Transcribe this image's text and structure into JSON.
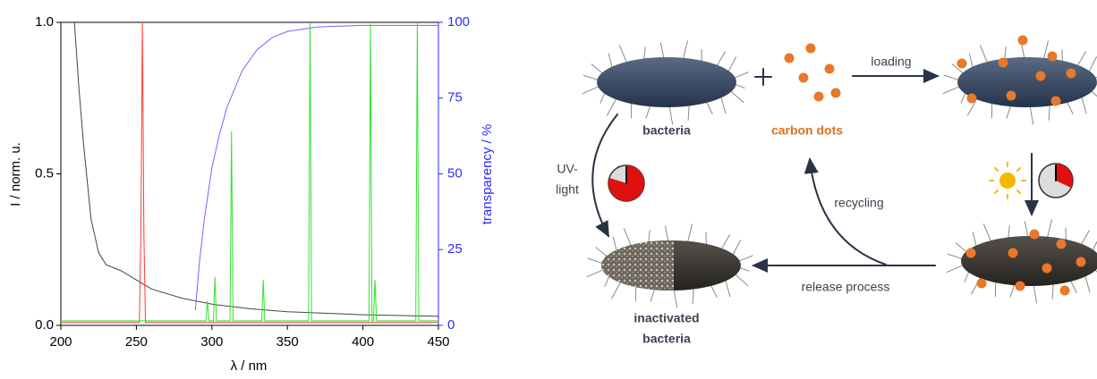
{
  "chart_data": {
    "type": "line",
    "xlabel": "λ / nm",
    "ylabel": "I / norm. u.",
    "y2label": "transparency / %",
    "xlim": [
      200,
      450
    ],
    "ylim": [
      0,
      1
    ],
    "y2lim": [
      0,
      100
    ],
    "xticks": [
      200,
      250,
      300,
      350,
      400,
      450
    ],
    "yticks": [
      {
        "value": 0,
        "label": "0.0"
      },
      {
        "value": 0.5,
        "label": "0.5"
      },
      {
        "value": 1,
        "label": "1.0"
      }
    ],
    "y2ticks": [
      0,
      25,
      50,
      75,
      100
    ],
    "y2color": "#2b2bff",
    "series": [
      {
        "color": "#444444",
        "x": [
          209,
          212,
          215,
          220,
          225,
          230,
          240,
          250,
          260,
          280,
          300,
          325,
          350,
          400,
          450
        ],
        "values": [
          1.0,
          0.78,
          0.6,
          0.35,
          0.24,
          0.2,
          0.18,
          0.15,
          0.12,
          0.09,
          0.07,
          0.055,
          0.045,
          0.035,
          0.03
        ]
      },
      {
        "color": "#ff3b30",
        "x": [
          200,
          252,
          253,
          254,
          255,
          256,
          450
        ],
        "values": [
          0.01,
          0.01,
          0.3,
          1.0,
          0.3,
          0.01,
          0.01
        ]
      },
      {
        "color": "#6a6aff",
        "axis": "y2",
        "x": [
          289,
          292,
          295,
          300,
          305,
          310,
          320,
          330,
          340,
          350,
          370,
          400,
          450
        ],
        "values": [
          5,
          22,
          35,
          52,
          63,
          72,
          84,
          91,
          95,
          97,
          98.5,
          99,
          99
        ]
      },
      {
        "color": "#33e033",
        "x": [
          200,
          296,
          297,
          298,
          301,
          302,
          303,
          312,
          313,
          314,
          333,
          334,
          335,
          364,
          365,
          366,
          404,
          405,
          406,
          407,
          408,
          409,
          435,
          436,
          437,
          450
        ],
        "values": [
          0.015,
          0.015,
          0.08,
          0.015,
          0.015,
          0.16,
          0.015,
          0.015,
          0.64,
          0.015,
          0.015,
          0.15,
          0.015,
          0.015,
          1.0,
          0.015,
          0.015,
          1.0,
          0.015,
          0.015,
          0.15,
          0.015,
          0.015,
          1.0,
          0.015,
          0.015
        ]
      }
    ]
  },
  "diagram": {
    "loading": "loading",
    "bacteria": "bacteria",
    "carbon_dots": "carbon dots",
    "uv_light": [
      "UV-",
      "light"
    ],
    "recycling": "recycling",
    "release_process": "release process",
    "inactivated_bacteria": [
      "inactivated",
      "bacteria"
    ]
  }
}
